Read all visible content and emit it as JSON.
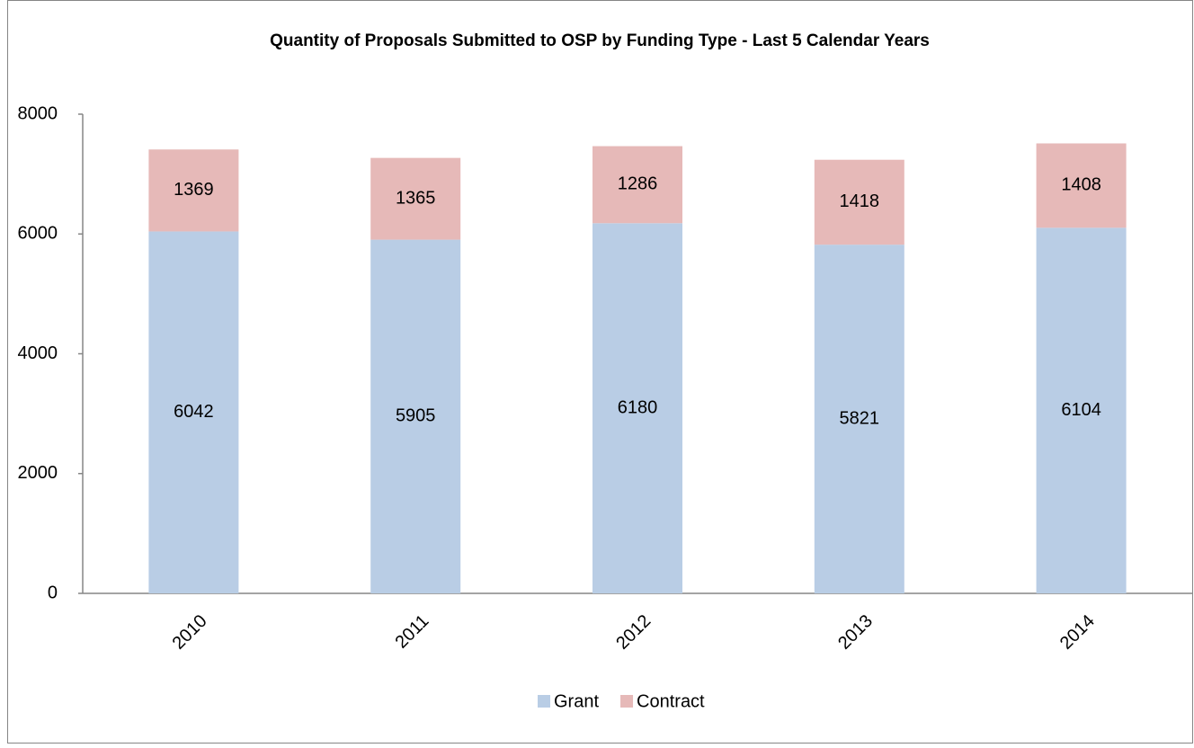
{
  "chart_data": {
    "type": "bar",
    "stacked": true,
    "title": "Quantity of Proposals Submitted to OSP by Funding Type - Last 5 Calendar Years",
    "categories": [
      "2010",
      "2011",
      "2012",
      "2013",
      "2014"
    ],
    "series": [
      {
        "name": "Grant",
        "color": "#b9cde5",
        "values": [
          6042,
          5905,
          6180,
          5821,
          6104
        ]
      },
      {
        "name": "Contract",
        "color": "#e6b9b8",
        "values": [
          1369,
          1365,
          1286,
          1418,
          1408
        ]
      }
    ],
    "ylim": [
      0,
      8000
    ],
    "yticks": [
      0,
      2000,
      4000,
      6000,
      8000
    ],
    "grid": false,
    "legend": "bottom"
  }
}
